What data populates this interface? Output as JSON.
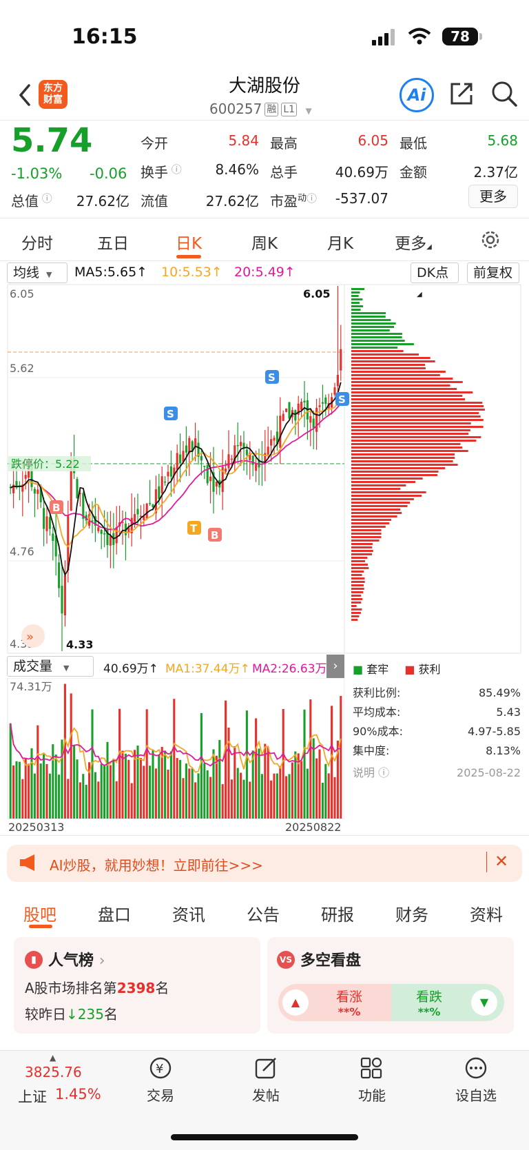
{
  "status": {
    "time": "16:15",
    "battery": "78"
  },
  "header": {
    "logo_line1": "东方",
    "logo_line2": "财富",
    "name": "大湖股份",
    "code": "600257",
    "tag1": "融",
    "tag2": "L1",
    "ai_label": "Ai"
  },
  "quote": {
    "price": "5.74",
    "change_pct": "-1.03%",
    "change": "-0.06",
    "open_label": "今开",
    "open": "5.84",
    "high_label": "最高",
    "high": "6.05",
    "low_label": "最低",
    "low": "5.68",
    "turnover_label": "换手",
    "turnover": "8.46%",
    "volume_label": "总手",
    "volume": "40.69万",
    "amount_label": "金额",
    "amount": "2.37亿",
    "mktcap_label": "总值",
    "mktcap": "27.62亿",
    "float_label": "流值",
    "float_cap": "27.62亿",
    "pe_label": "市盈",
    "pe_sup": "动",
    "pe": "-537.07",
    "more": "更多"
  },
  "ktabs": [
    "分时",
    "五日",
    "日K",
    "周K",
    "月K",
    "更多"
  ],
  "chart_toolbar": {
    "ma_select": "均线",
    "ma5": "MA5:5.65↑",
    "ma10": "10:5.53↑",
    "ma20": "20:5.49↑",
    "dk": "DK点",
    "adjust": "前复权"
  },
  "chart_labels": {
    "y_top": "6.05",
    "y_mid": "5.62",
    "y_low": "4.76",
    "y_bottom": "4.33",
    "high_mark": "6.05",
    "low_mark": "4.33",
    "limit_label": "跌停价：5.22",
    "vol_select": "成交量",
    "vol_val": "40.69万↑",
    "vol_ma1": "MA1:37.44万↑",
    "vol_ma2": "MA2:26.63万↑",
    "vol_max": "74.31万",
    "date_start": "20250313",
    "date_end": "20250822",
    "sig_s": "S",
    "sig_b": "B",
    "sig_t": "T"
  },
  "chips": {
    "legend_trapped": "套牢",
    "legend_profit": "获利",
    "rows": [
      {
        "label": "获利比例:",
        "value": "85.49%"
      },
      {
        "label": "平均成本:",
        "value": "5.43"
      },
      {
        "label": "90%成本:",
        "value": "4.97-5.85"
      },
      {
        "label": "集中度:",
        "value": "8.13%"
      }
    ],
    "note_label": "说明",
    "date": "2025-08-22"
  },
  "banner": {
    "text": "AI炒股，就用妙想！立即前往>>>"
  },
  "bottom_tabs": [
    "股吧",
    "盘口",
    "资讯",
    "公告",
    "研报",
    "财务",
    "资料"
  ],
  "cards": {
    "hot_title": "人气榜",
    "hot_line1_pre": "A股市场排名第",
    "hot_rank": "2398",
    "hot_line1_post": "名",
    "hot_line2_pre": "较昨日",
    "hot_delta": "235",
    "hot_line2_post": "名",
    "vs_title": "多空看盘",
    "bull": "看涨",
    "bull_val": "**%",
    "bear": "看跌",
    "bear_val": "**%"
  },
  "index": {
    "value": "3825.76",
    "name": "上证",
    "pct": "1.45%"
  },
  "nav": [
    "交易",
    "发帖",
    "功能",
    "设自选"
  ],
  "colors": {
    "up": "#e5302b",
    "down": "#16a02a",
    "brand": "#f25a1e",
    "ma5": "#111111",
    "ma10": "#f5a623",
    "ma20": "#e0199a"
  }
}
